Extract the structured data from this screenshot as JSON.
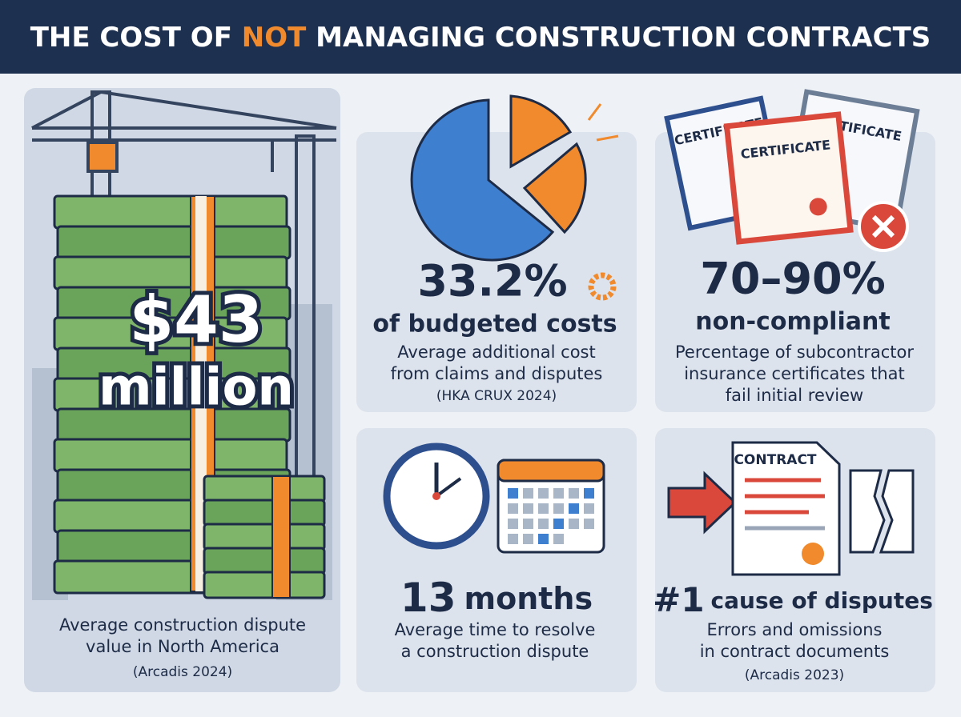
{
  "header": {
    "title": {
      "before": "THE COST OF ",
      "highlight": "NOT",
      "after": " MANAGING CONSTRUCTION CONTRACTS"
    }
  },
  "panels": [
    {
      "stat": "$43",
      "stat_unit": "million",
      "description": [
        "Average construction dispute",
        "value in North America"
      ],
      "source": "(Arcadis 2024)"
    },
    {
      "stat": "33.2%",
      "subtitle": "of budgeted costs",
      "description": [
        "Average additional cost",
        "from claims and disputes"
      ],
      "source": "(HKA CRUX 2024)"
    },
    {
      "stat": "70–90%",
      "subtitle": "non-compliant",
      "description": [
        "Percentage of subcontractor",
        "insurance certificates that",
        "fail initial review"
      ]
    },
    {
      "stat": "13",
      "stat_unit": "months",
      "description": [
        "Average time to resolve",
        "a construction dispute"
      ]
    },
    {
      "stat": "#1",
      "stat_unit": "cause of disputes",
      "description": [
        "Errors and omissions",
        "in contract documents"
      ],
      "source": "(Arcadis 2023)"
    }
  ],
  "illustration_labels": {
    "certificates": [
      "CERTIFICATE",
      "CERTIFICATE",
      "CERTIFICATE"
    ],
    "contract": "CONTRACT"
  }
}
